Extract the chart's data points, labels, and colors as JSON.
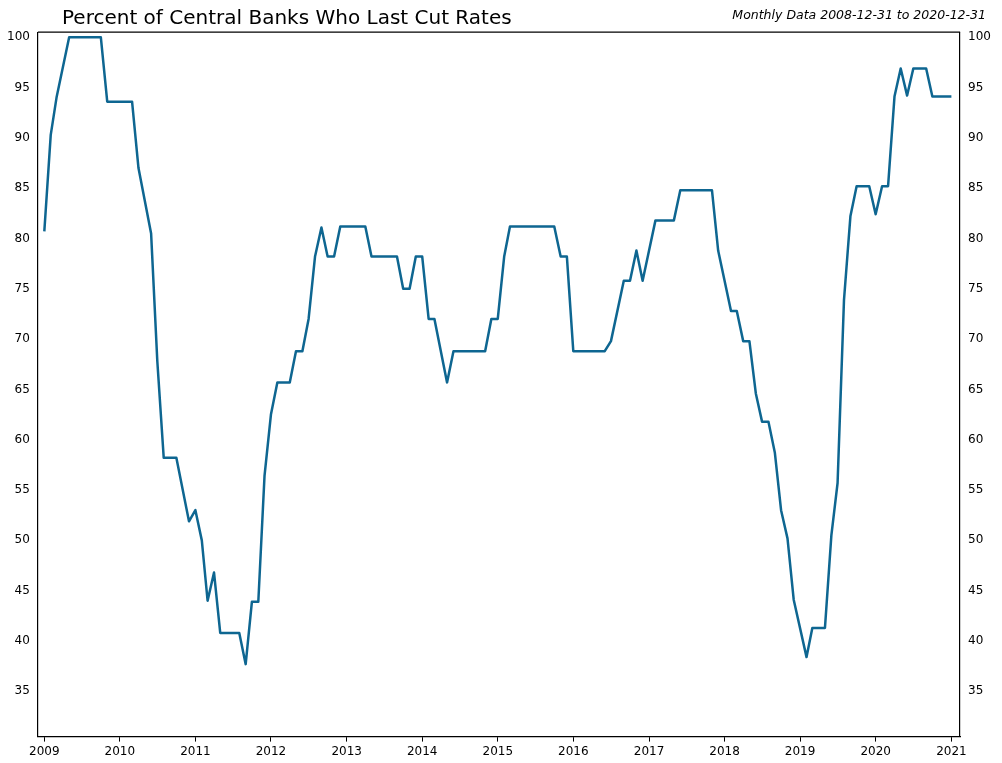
{
  "chart_data": {
    "type": "line",
    "title": "Percent of Central Banks Who Last Cut Rates",
    "subtitle": "Monthly Data 2008-12-31 to 2020-12-31",
    "x": [
      "2009-01",
      "2009-02",
      "2009-03",
      "2009-05",
      "2009-10",
      "2009-11",
      "2010-03",
      "2010-04",
      "2010-06",
      "2010-07",
      "2010-08",
      "2010-10",
      "2010-12",
      "2011-01",
      "2011-02",
      "2011-03",
      "2011-04",
      "2011-05",
      "2011-08",
      "2011-09",
      "2011-10",
      "2011-11",
      "2011-12",
      "2012-01",
      "2012-02",
      "2012-04",
      "2012-05",
      "2012-06",
      "2012-07",
      "2012-08",
      "2012-09",
      "2012-10",
      "2012-11",
      "2012-12",
      "2013-04",
      "2013-05",
      "2013-09",
      "2013-10",
      "2013-11",
      "2013-12",
      "2014-01",
      "2014-02",
      "2014-03",
      "2014-05",
      "2014-06",
      "2014-11",
      "2014-12",
      "2015-01",
      "2015-02",
      "2015-03",
      "2015-10",
      "2015-11",
      "2015-12",
      "2016-01",
      "2016-06",
      "2016-07",
      "2016-09",
      "2016-10",
      "2016-11",
      "2016-12",
      "2017-02",
      "2017-05",
      "2017-06",
      "2017-11",
      "2017-12",
      "2018-02",
      "2018-03",
      "2018-04",
      "2018-05",
      "2018-06",
      "2018-07",
      "2018-08",
      "2018-09",
      "2018-10",
      "2018-11",
      "2018-12",
      "2019-02",
      "2019-03",
      "2019-05",
      "2019-06",
      "2019-07",
      "2019-08",
      "2019-09",
      "2019-10",
      "2019-12",
      "2020-01",
      "2020-02",
      "2020-03",
      "2020-04",
      "2020-05",
      "2020-06",
      "2020-07",
      "2020-09",
      "2020-10",
      "2021-01"
    ],
    "series": [
      {
        "color": "#0e6691",
        "values": [
          80.7,
          90.3,
          94,
          100,
          100,
          93.6,
          93.6,
          87,
          80.5,
          67.8,
          58.2,
          58.2,
          51.9,
          53,
          50,
          44,
          46.8,
          40.8,
          40.8,
          37.7,
          43.9,
          43.9,
          56.4,
          62.5,
          65.7,
          65.7,
          68.8,
          68.8,
          72,
          78.2,
          81.1,
          78.2,
          78.2,
          81.2,
          81.2,
          78.2,
          78.2,
          75,
          75,
          78.2,
          78.2,
          72,
          72,
          65.7,
          68.8,
          68.8,
          72,
          72,
          78.2,
          81.2,
          81.2,
          78.2,
          78.2,
          68.8,
          68.8,
          69.8,
          75.8,
          75.8,
          78.8,
          75.8,
          81.8,
          81.8,
          84.8,
          84.8,
          78.8,
          72.8,
          72.8,
          69.8,
          69.8,
          64.6,
          61.8,
          61.8,
          58.7,
          53,
          50.2,
          44.1,
          38.4,
          41.3,
          41.3,
          50.5,
          55.7,
          73.9,
          82.2,
          85.2,
          85.2,
          82.4,
          85.2,
          85.2,
          94.1,
          96.9,
          94.2,
          96.9,
          96.9,
          94.1,
          94.1
        ]
      }
    ],
    "xlim": [
      "2008-12-01",
      "2021-02-12"
    ],
    "xticks": [
      "2009",
      "2010",
      "2011",
      "2012",
      "2013",
      "2014",
      "2015",
      "2016",
      "2017",
      "2018",
      "2019",
      "2020",
      "2021"
    ],
    "ylim": [
      30.5,
      100.5
    ],
    "yticks": [
      35,
      40,
      45,
      50,
      55,
      60,
      65,
      70,
      75,
      80,
      85,
      90,
      95,
      100
    ],
    "y2lim": [
      30.5,
      100.5
    ],
    "y2ticks": [
      35,
      40,
      45,
      50,
      55,
      60,
      65,
      70,
      75,
      80,
      85,
      90,
      95,
      100
    ],
    "grid": false,
    "legend": false,
    "marker": "none",
    "line_style": "solid"
  }
}
